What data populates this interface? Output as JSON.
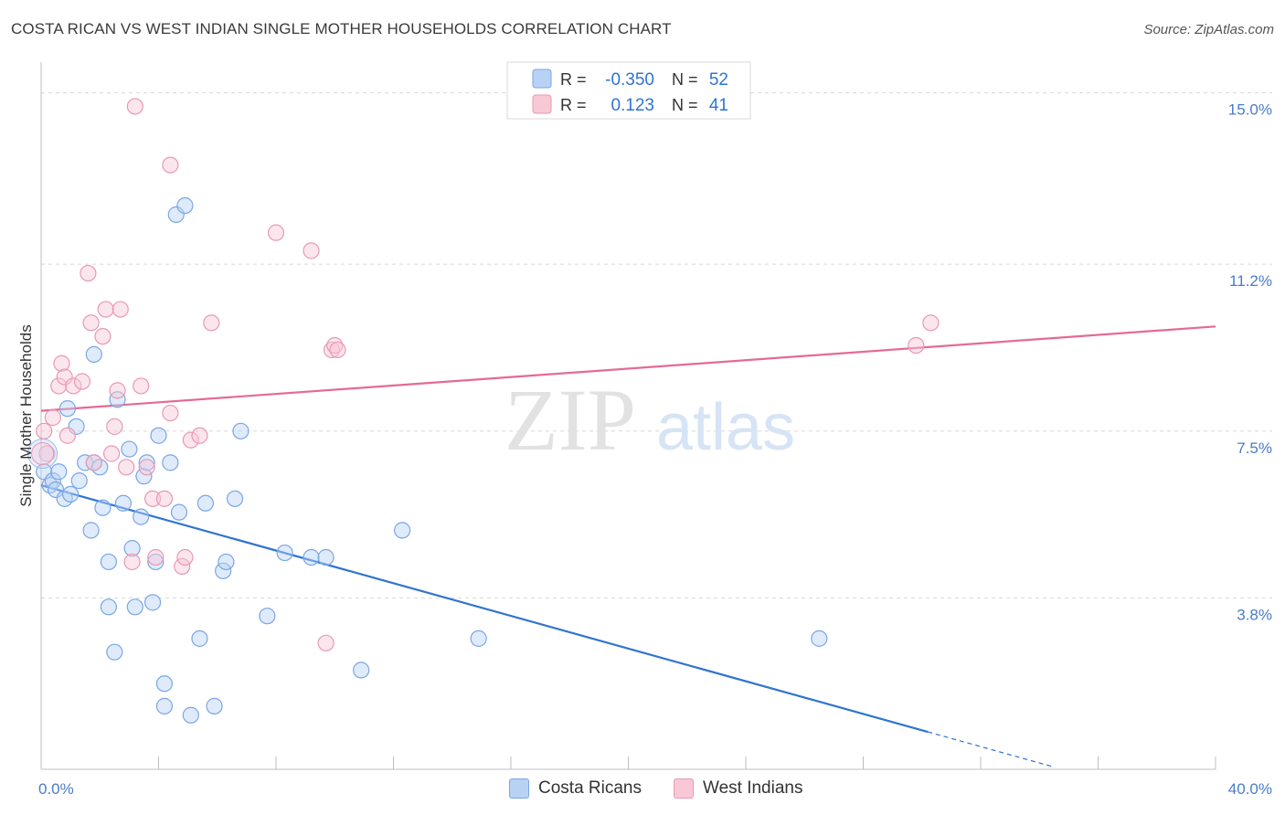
{
  "title": "COSTA RICAN VS WEST INDIAN SINGLE MOTHER HOUSEHOLDS CORRELATION CHART",
  "source": "Source: ZipAtlas.com",
  "watermark": {
    "zip": "ZIP",
    "atlas": "atlas"
  },
  "legend_top": [
    {
      "r_label": "R =",
      "r_value": "-0.350",
      "n_label": "N =",
      "n_value": "52",
      "fill": "#b8d2f5",
      "stroke": "#7aa6e6"
    },
    {
      "r_label": "R =",
      "r_value": " 0.123",
      "n_label": "N =",
      "n_value": "41",
      "fill": "#f8c8d6",
      "stroke": "#e899b2"
    }
  ],
  "legend_bottom": [
    {
      "label": "Costa Ricans",
      "fill": "#b8d2f5",
      "stroke": "#7aa6e6"
    },
    {
      "label": "West Indians",
      "fill": "#f8c8d6",
      "stroke": "#e899b2"
    }
  ],
  "colors": {
    "blue_line": "#2f74d0",
    "pink_line": "#e46b92",
    "axis_text": "#4a7cc7",
    "grid": "#d8d8d8"
  },
  "chart_data": {
    "type": "scatter",
    "title": "COSTA RICAN VS WEST INDIAN SINGLE MOTHER HOUSEHOLDS CORRELATION CHART",
    "xlabel": "",
    "ylabel": "Single Mother Households",
    "xlim": [
      0,
      40
    ],
    "ylim": [
      0,
      15.6
    ],
    "x_tick_labels": [
      {
        "value": 0,
        "label": "0.0%"
      },
      {
        "value": 40,
        "label": "40.0%"
      }
    ],
    "y_tick_labels": [
      {
        "value": 3.8,
        "label": "3.8%"
      },
      {
        "value": 7.5,
        "label": "7.5%"
      },
      {
        "value": 11.2,
        "label": "11.2%"
      },
      {
        "value": 15.0,
        "label": "15.0%"
      }
    ],
    "grid": true,
    "series": [
      {
        "name": "Costa Ricans",
        "color": "#7aa6e6",
        "points": [
          [
            0.1,
            6.6
          ],
          [
            0.3,
            6.3
          ],
          [
            0.4,
            6.4
          ],
          [
            0.5,
            6.2
          ],
          [
            0.6,
            6.6
          ],
          [
            0.8,
            6.0
          ],
          [
            0.9,
            8.0
          ],
          [
            1.0,
            6.1
          ],
          [
            1.2,
            7.6
          ],
          [
            1.3,
            6.4
          ],
          [
            1.5,
            6.8
          ],
          [
            1.7,
            5.3
          ],
          [
            1.8,
            9.2
          ],
          [
            1.8,
            6.8
          ],
          [
            2.0,
            6.7
          ],
          [
            2.1,
            5.8
          ],
          [
            2.3,
            3.6
          ],
          [
            2.3,
            4.6
          ],
          [
            2.5,
            2.6
          ],
          [
            2.6,
            8.2
          ],
          [
            2.8,
            5.9
          ],
          [
            3.0,
            7.1
          ],
          [
            3.1,
            4.9
          ],
          [
            3.2,
            3.6
          ],
          [
            3.4,
            5.6
          ],
          [
            3.5,
            6.5
          ],
          [
            3.6,
            6.8
          ],
          [
            3.8,
            3.7
          ],
          [
            3.9,
            4.6
          ],
          [
            4.0,
            7.4
          ],
          [
            4.2,
            1.9
          ],
          [
            4.2,
            1.4
          ],
          [
            4.4,
            6.8
          ],
          [
            4.6,
            12.3
          ],
          [
            4.7,
            5.7
          ],
          [
            4.9,
            12.5
          ],
          [
            5.1,
            1.2
          ],
          [
            5.4,
            2.9
          ],
          [
            5.6,
            5.9
          ],
          [
            5.9,
            1.4
          ],
          [
            6.2,
            4.4
          ],
          [
            6.3,
            4.6
          ],
          [
            6.6,
            6.0
          ],
          [
            6.8,
            7.5
          ],
          [
            7.7,
            3.4
          ],
          [
            8.3,
            4.8
          ],
          [
            9.2,
            4.7
          ],
          [
            9.7,
            4.7
          ],
          [
            10.9,
            2.2
          ],
          [
            12.3,
            5.3
          ],
          [
            14.9,
            2.9
          ],
          [
            26.5,
            2.9
          ]
        ]
      },
      {
        "name": "West Indians",
        "color": "#e899b2",
        "points": [
          [
            0.1,
            7.5
          ],
          [
            0.2,
            7.0
          ],
          [
            0.4,
            7.8
          ],
          [
            0.6,
            8.5
          ],
          [
            0.7,
            9.0
          ],
          [
            0.8,
            8.7
          ],
          [
            0.9,
            7.4
          ],
          [
            1.1,
            8.5
          ],
          [
            1.4,
            8.6
          ],
          [
            1.6,
            11.0
          ],
          [
            1.7,
            9.9
          ],
          [
            1.8,
            6.8
          ],
          [
            2.1,
            9.6
          ],
          [
            2.2,
            10.2
          ],
          [
            2.4,
            7.0
          ],
          [
            2.5,
            7.6
          ],
          [
            2.6,
            8.4
          ],
          [
            2.7,
            10.2
          ],
          [
            2.9,
            6.7
          ],
          [
            3.1,
            4.6
          ],
          [
            3.4,
            8.5
          ],
          [
            3.6,
            6.7
          ],
          [
            3.8,
            6.0
          ],
          [
            3.9,
            4.7
          ],
          [
            4.2,
            6.0
          ],
          [
            4.4,
            7.9
          ],
          [
            4.8,
            4.5
          ],
          [
            4.9,
            4.7
          ],
          [
            5.1,
            7.3
          ],
          [
            5.4,
            7.4
          ],
          [
            5.8,
            9.9
          ],
          [
            8.0,
            11.9
          ],
          [
            9.2,
            11.5
          ],
          [
            9.9,
            9.3
          ],
          [
            10.0,
            9.4
          ],
          [
            10.1,
            9.3
          ],
          [
            3.2,
            14.7
          ],
          [
            4.4,
            13.4
          ],
          [
            9.7,
            2.8
          ],
          [
            29.8,
            9.4
          ],
          [
            30.3,
            9.9
          ]
        ]
      }
    ],
    "trendlines": [
      {
        "series": "Costa Ricans",
        "x": [
          0,
          30.2
        ],
        "y": [
          6.3,
          0.83
        ],
        "dashed_extension_to_x": 34.5
      },
      {
        "series": "West Indians",
        "x": [
          0,
          40.0
        ],
        "y": [
          7.95,
          9.82
        ]
      }
    ]
  }
}
